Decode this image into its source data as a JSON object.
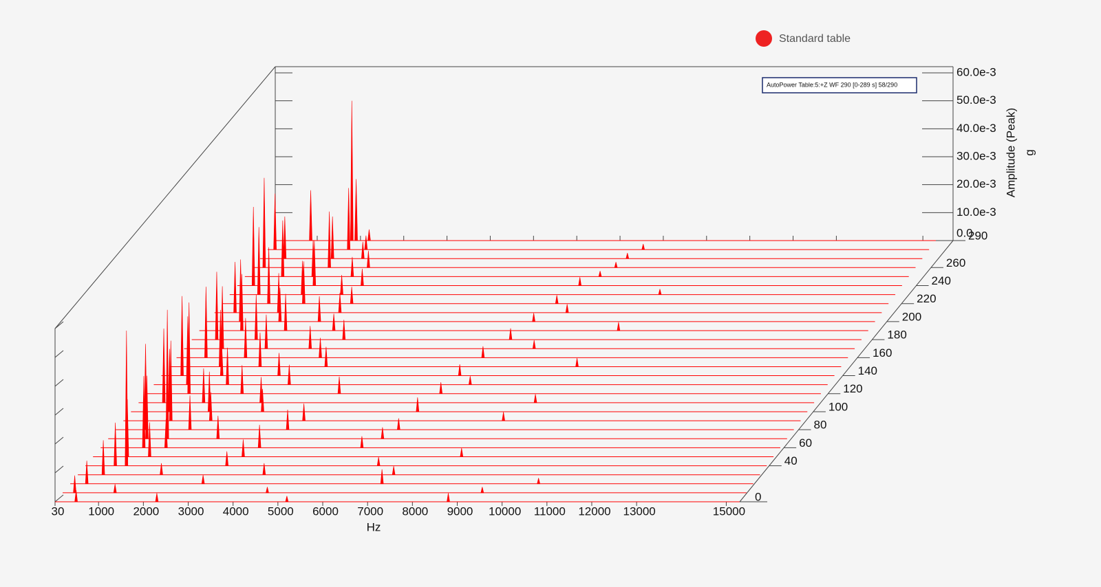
{
  "chart_data": {
    "type": "waterfall",
    "legend": "Standard table",
    "annotation": "AutoPower Table:5:+Z WF 290 [0-289 s]  58/290",
    "xlabel": "Hz",
    "zlabel": "Amplitude (Peak)",
    "zunit": "g",
    "color": "#ff0000",
    "xlim": [
      30,
      15300
    ],
    "xticks": [
      30,
      1000,
      2000,
      3000,
      4000,
      5000,
      6000,
      7000,
      8000,
      9000,
      10000,
      11000,
      12000,
      13000,
      15000
    ],
    "zlim": [
      0,
      0.06
    ],
    "zticks": [
      {
        "value": 0,
        "label": "0.0"
      },
      {
        "value": 0.01,
        "label": "10.0e-3"
      },
      {
        "value": 0.02,
        "label": "20.0e-3"
      },
      {
        "value": 0.03,
        "label": "30.0e-3"
      },
      {
        "value": 0.04,
        "label": "40.0e-3"
      },
      {
        "value": 0.05,
        "label": "50.0e-3"
      },
      {
        "value": 0.06,
        "label": "60.0e-3"
      }
    ],
    "tlim": [
      0,
      290
    ],
    "tticks": [
      0,
      40,
      60,
      80,
      100,
      120,
      140,
      160,
      180,
      200,
      220,
      240,
      260,
      290
    ],
    "traces": [
      {
        "t": 0,
        "peaks": [
          [
            500,
            0.004
          ],
          [
            2300,
            0.003
          ],
          [
            5200,
            0.002
          ],
          [
            8800,
            0.003
          ]
        ]
      },
      {
        "t": 10,
        "peaks": [
          [
            300,
            0.006
          ],
          [
            1200,
            0.003
          ],
          [
            4600,
            0.002
          ],
          [
            9400,
            0.002
          ]
        ]
      },
      {
        "t": 20,
        "peaks": [
          [
            400,
            0.008
          ],
          [
            3000,
            0.003
          ],
          [
            7000,
            0.005
          ],
          [
            10500,
            0.002
          ]
        ]
      },
      {
        "t": 30,
        "peaks": [
          [
            600,
            0.012
          ],
          [
            1900,
            0.004
          ],
          [
            4200,
            0.004
          ],
          [
            7100,
            0.003
          ]
        ]
      },
      {
        "t": 40,
        "peaks": [
          [
            950,
            0.047
          ],
          [
            700,
            0.015
          ],
          [
            3200,
            0.005
          ],
          [
            6600,
            0.003
          ]
        ]
      },
      {
        "t": 50,
        "peaks": [
          [
            800,
            0.02
          ],
          [
            1300,
            0.012
          ],
          [
            3400,
            0.006
          ],
          [
            8300,
            0.003
          ]
        ]
      },
      {
        "t": 60,
        "peaks": [
          [
            1000,
            0.025
          ],
          [
            1500,
            0.01
          ],
          [
            3600,
            0.008
          ],
          [
            5900,
            0.004
          ]
        ]
      },
      {
        "t": 70,
        "peaks": [
          [
            1360,
            0.045
          ],
          [
            900,
            0.022
          ],
          [
            2500,
            0.008
          ],
          [
            6200,
            0.004
          ]
        ]
      },
      {
        "t": 80,
        "peaks": [
          [
            700,
            0.03
          ],
          [
            1700,
            0.012
          ],
          [
            3900,
            0.007
          ],
          [
            6400,
            0.004
          ]
        ]
      },
      {
        "t": 90,
        "peaks": [
          [
            1100,
            0.028
          ],
          [
            2000,
            0.01
          ],
          [
            4100,
            0.006
          ],
          [
            8600,
            0.003
          ]
        ]
      },
      {
        "t": 100,
        "peaks": [
          [
            900,
            0.022
          ],
          [
            1800,
            0.014
          ],
          [
            3000,
            0.008
          ],
          [
            6500,
            0.005
          ]
        ]
      },
      {
        "t": 110,
        "peaks": [
          [
            600,
            0.026
          ],
          [
            1500,
            0.012
          ],
          [
            2800,
            0.009
          ],
          [
            9000,
            0.003
          ]
        ]
      },
      {
        "t": 120,
        "peaks": [
          [
            1000,
            0.032
          ],
          [
            2200,
            0.01
          ],
          [
            4400,
            0.006
          ],
          [
            6700,
            0.004
          ]
        ]
      },
      {
        "t": 130,
        "peaks": [
          [
            800,
            0.024
          ],
          [
            1700,
            0.013
          ],
          [
            3100,
            0.007
          ],
          [
            7200,
            0.003
          ]
        ]
      },
      {
        "t": 140,
        "peaks": [
          [
            500,
            0.028
          ],
          [
            1400,
            0.011
          ],
          [
            2700,
            0.008
          ],
          [
            6800,
            0.004
          ]
        ]
      },
      {
        "t": 150,
        "peaks": [
          [
            1200,
            0.02
          ],
          [
            2100,
            0.012
          ],
          [
            3600,
            0.007
          ],
          [
            9300,
            0.003
          ]
        ]
      },
      {
        "t": 160,
        "peaks": [
          [
            700,
            0.025
          ],
          [
            1600,
            0.014
          ],
          [
            3300,
            0.007
          ],
          [
            7000,
            0.004
          ]
        ]
      },
      {
        "t": 170,
        "peaks": [
          [
            900,
            0.022
          ],
          [
            1900,
            0.012
          ],
          [
            2900,
            0.008
          ],
          [
            8000,
            0.003
          ]
        ]
      },
      {
        "t": 180,
        "peaks": [
          [
            600,
            0.024
          ],
          [
            1500,
            0.016
          ],
          [
            3500,
            0.007
          ],
          [
            7300,
            0.004
          ]
        ]
      },
      {
        "t": 190,
        "peaks": [
          [
            1000,
            0.02
          ],
          [
            2000,
            0.013
          ],
          [
            3100,
            0.006
          ],
          [
            9600,
            0.003
          ]
        ]
      },
      {
        "t": 200,
        "peaks": [
          [
            800,
            0.022
          ],
          [
            1700,
            0.012
          ],
          [
            2600,
            0.009
          ],
          [
            7500,
            0.003
          ]
        ]
      },
      {
        "t": 210,
        "peaks": [
          [
            500,
            0.018
          ],
          [
            1500,
            0.014
          ],
          [
            2900,
            0.007
          ],
          [
            8100,
            0.003
          ]
        ]
      },
      {
        "t": 220,
        "peaks": [
          [
            1100,
            0.02
          ],
          [
            1900,
            0.015
          ],
          [
            3000,
            0.006
          ],
          [
            7700,
            0.003
          ]
        ]
      },
      {
        "t": 230,
        "peaks": [
          [
            700,
            0.024
          ],
          [
            1700,
            0.012
          ],
          [
            2600,
            0.007
          ],
          [
            9900,
            0.002
          ]
        ]
      },
      {
        "t": 240,
        "peaks": [
          [
            400,
            0.028
          ],
          [
            1800,
            0.016
          ],
          [
            2900,
            0.006
          ],
          [
            7900,
            0.003
          ]
        ]
      },
      {
        "t": 250,
        "peaks": [
          [
            900,
            0.02
          ],
          [
            1600,
            0.013
          ],
          [
            2500,
            0.007
          ],
          [
            8200,
            0.002
          ]
        ]
      },
      {
        "t": 260,
        "peaks": [
          [
            300,
            0.032
          ],
          [
            1800,
            0.02
          ],
          [
            2700,
            0.006
          ],
          [
            8400,
            0.002
          ]
        ]
      },
      {
        "t": 270,
        "peaks": [
          [
            600,
            0.015
          ],
          [
            1700,
            0.015
          ],
          [
            2400,
            0.006
          ],
          [
            8500,
            0.002
          ]
        ]
      },
      {
        "t": 280,
        "peaks": [
          [
            200,
            0.02
          ],
          [
            1900,
            0.022
          ],
          [
            2300,
            0.005
          ],
          [
            8700,
            0.002
          ]
        ]
      },
      {
        "t": 290,
        "peaks": [
          [
            850,
            0.018
          ],
          [
            1800,
            0.05
          ],
          [
            1900,
            0.022
          ],
          [
            2200,
            0.004
          ]
        ]
      }
    ]
  }
}
